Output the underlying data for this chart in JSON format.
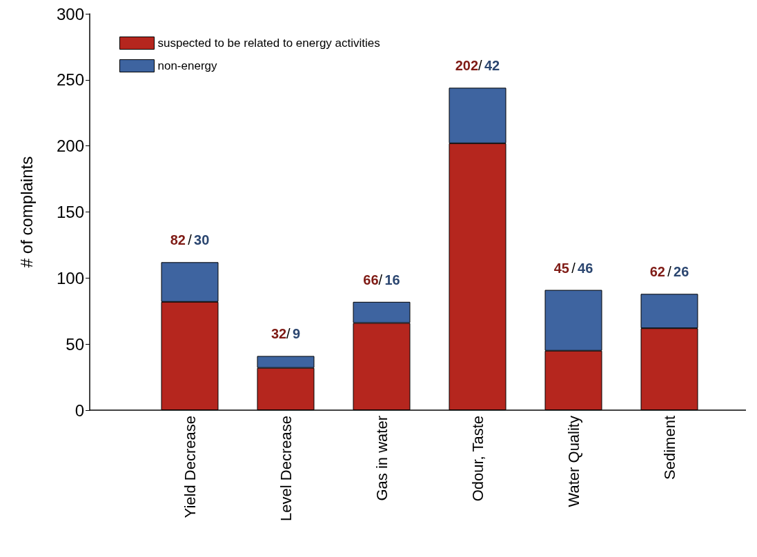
{
  "chart_data": {
    "type": "bar",
    "stacked": true,
    "ylabel": "# of complaints",
    "categories": [
      "Yield Decrease",
      "Level Decrease",
      "Gas in water",
      "Odour, Taste",
      "Water Quality",
      "Sediment"
    ],
    "series": [
      {
        "name": "suspected to be related to energy activities",
        "color": "#b5261e",
        "values": [
          82,
          32,
          66,
          202,
          45,
          62
        ]
      },
      {
        "name": "non-energy",
        "color": "#3e64a0",
        "values": [
          30,
          9,
          16,
          42,
          46,
          26
        ]
      }
    ],
    "ylim": [
      0,
      300
    ],
    "yticks": [
      0,
      50,
      100,
      150,
      200,
      250,
      300
    ],
    "grid": false,
    "legend": "top left",
    "annotations": [
      {
        "text": "82 / 30",
        "x": "Yield Decrease",
        "y": 112
      },
      {
        "text": "32/ 9",
        "x": "Level Decrease",
        "y": 41
      },
      {
        "text": "66/ 16",
        "x": "Gas in water",
        "y": 82
      },
      {
        "text": "202/ 42",
        "x": "Odour, Taste",
        "y": 244
      },
      {
        "text": "45 / 46",
        "x": "Water Quality",
        "y": 91
      },
      {
        "text": "62 / 26",
        "x": "Sediment",
        "y": 88
      }
    ]
  }
}
